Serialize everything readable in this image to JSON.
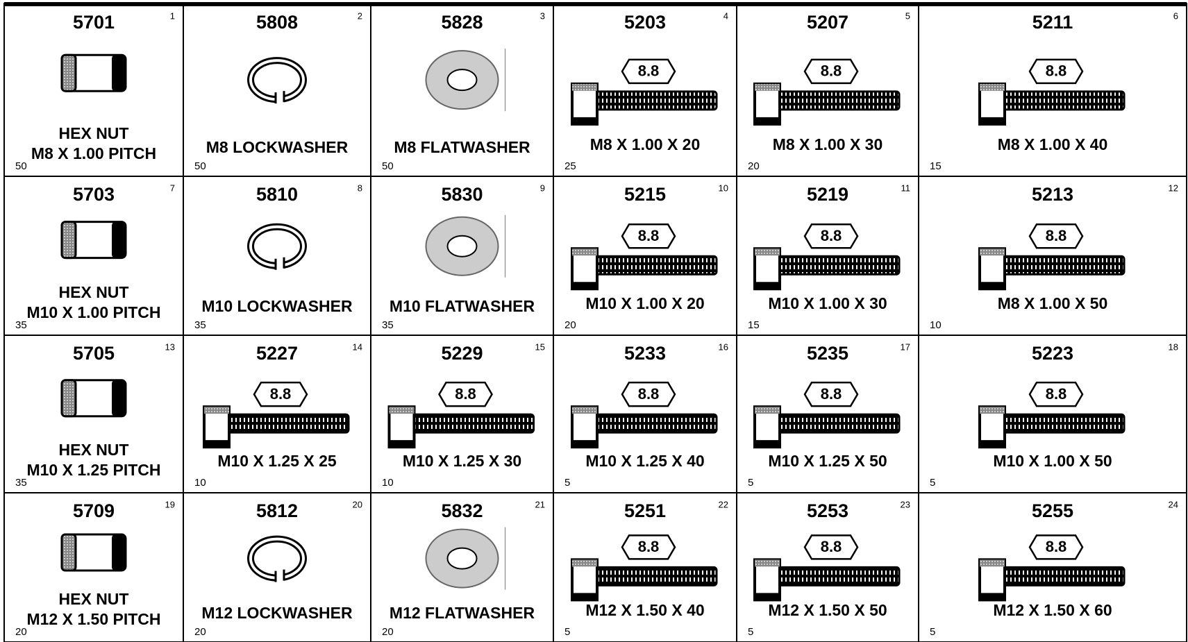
{
  "cells": [
    {
      "part": "5701",
      "index": 1,
      "icon": "nut",
      "label": [
        "HEX NUT",
        "M8 X 1.00 PITCH"
      ],
      "qty": 50
    },
    {
      "part": "5808",
      "index": 2,
      "icon": "lockwasher",
      "label": [
        "M8 LOCKWASHER"
      ],
      "qty": 50
    },
    {
      "part": "5828",
      "index": 3,
      "icon": "flatwasher",
      "label": [
        "M8 FLATWASHER"
      ],
      "qty": 50
    },
    {
      "part": "5203",
      "index": 4,
      "icon": "bolt",
      "grade": "8.8",
      "label": [
        "M8 X 1.00 X 20"
      ],
      "qty": 25
    },
    {
      "part": "5207",
      "index": 5,
      "icon": "bolt",
      "grade": "8.8",
      "label": [
        "M8 X 1.00 X 30"
      ],
      "qty": 20
    },
    {
      "part": "5211",
      "index": 6,
      "icon": "bolt",
      "grade": "8.8",
      "label": [
        "M8 X 1.00 X 40"
      ],
      "qty": 15
    },
    {
      "part": "5703",
      "index": 7,
      "icon": "nut",
      "label": [
        "HEX NUT",
        "M10 X 1.00 PITCH"
      ],
      "qty": 35
    },
    {
      "part": "5810",
      "index": 8,
      "icon": "lockwasher",
      "label": [
        "M10 LOCKWASHER"
      ],
      "qty": 35
    },
    {
      "part": "5830",
      "index": 9,
      "icon": "flatwasher",
      "label": [
        "M10 FLATWASHER"
      ],
      "qty": 35
    },
    {
      "part": "5215",
      "index": 10,
      "icon": "bolt",
      "grade": "8.8",
      "label": [
        "M10 X 1.00 X 20"
      ],
      "qty": 20
    },
    {
      "part": "5219",
      "index": 11,
      "icon": "bolt",
      "grade": "8.8",
      "label": [
        "M10 X 1.00 X 30"
      ],
      "qty": 15
    },
    {
      "part": "5213",
      "index": 12,
      "icon": "bolt",
      "grade": "8.8",
      "label": [
        "M8 X 1.00 X 50"
      ],
      "qty": 10
    },
    {
      "part": "5705",
      "index": 13,
      "icon": "nut",
      "label": [
        "HEX NUT",
        "M10 X 1.25 PITCH"
      ],
      "qty": 35
    },
    {
      "part": "5227",
      "index": 14,
      "icon": "bolt",
      "grade": "8.8",
      "label": [
        "M10 X 1.25 X 25"
      ],
      "qty": 10
    },
    {
      "part": "5229",
      "index": 15,
      "icon": "bolt",
      "grade": "8.8",
      "label": [
        "M10 X 1.25 X 30"
      ],
      "qty": 10
    },
    {
      "part": "5233",
      "index": 16,
      "icon": "bolt",
      "grade": "8.8",
      "label": [
        "M10 X 1.25 X 40"
      ],
      "qty": 5
    },
    {
      "part": "5235",
      "index": 17,
      "icon": "bolt",
      "grade": "8.8",
      "label": [
        "M10 X 1.25 X 50"
      ],
      "qty": 5
    },
    {
      "part": "5223",
      "index": 18,
      "icon": "bolt",
      "grade": "8.8",
      "label": [
        "M10 X 1.00 X 50"
      ],
      "qty": 5
    },
    {
      "part": "5709",
      "index": 19,
      "icon": "nut",
      "label": [
        "HEX NUT",
        "M12 X 1.50 PITCH"
      ],
      "qty": 20
    },
    {
      "part": "5812",
      "index": 20,
      "icon": "lockwasher",
      "label": [
        "M12 LOCKWASHER"
      ],
      "qty": 20
    },
    {
      "part": "5832",
      "index": 21,
      "icon": "flatwasher",
      "label": [
        "M12 FLATWASHER"
      ],
      "qty": 20
    },
    {
      "part": "5251",
      "index": 22,
      "icon": "bolt",
      "grade": "8.8",
      "label": [
        "M12 X 1.50 X 40"
      ],
      "qty": 5
    },
    {
      "part": "5253",
      "index": 23,
      "icon": "bolt",
      "grade": "8.8",
      "label": [
        "M12 X 1.50 X 50"
      ],
      "qty": 5
    },
    {
      "part": "5255",
      "index": 24,
      "icon": "bolt",
      "grade": "8.8",
      "label": [
        "M12 X 1.50 X 60"
      ],
      "qty": 5
    }
  ]
}
